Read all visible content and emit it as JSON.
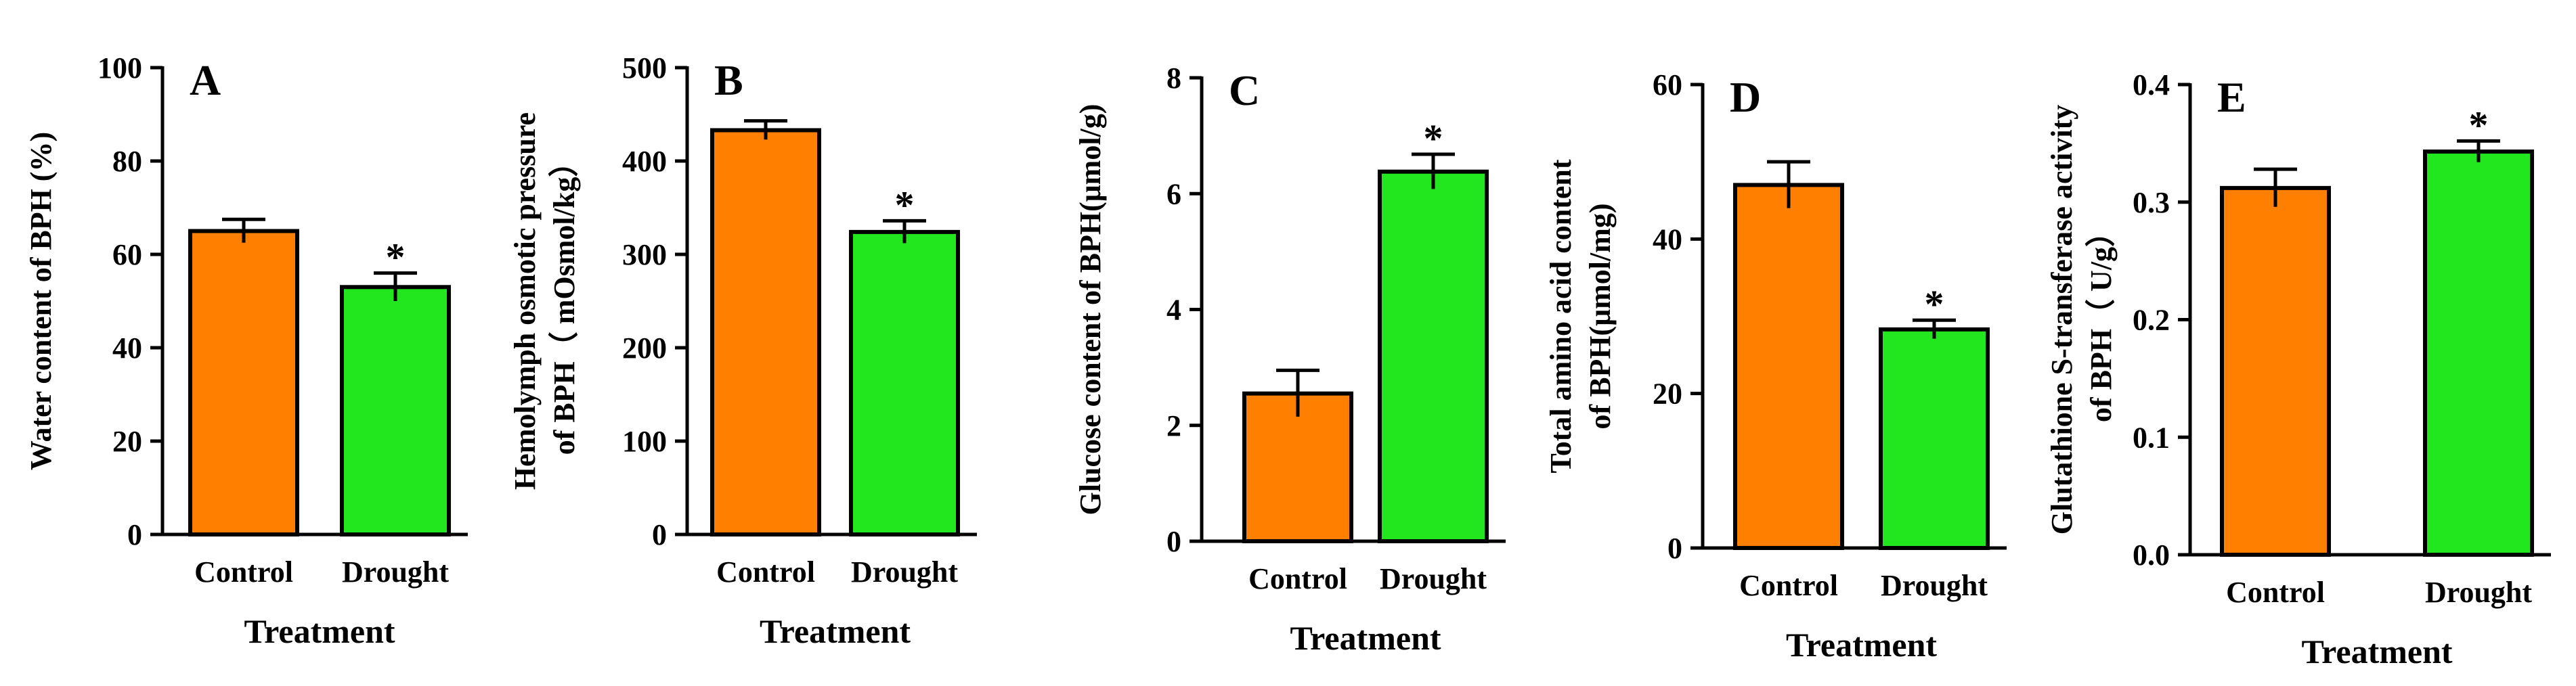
{
  "colors": {
    "control": "#FF7F00",
    "drought": "#22E61E",
    "axis": "#000000"
  },
  "chart_data": [
    {
      "id": "A",
      "type": "bar",
      "panel_label": "A",
      "categories": [
        "Control",
        "Drought"
      ],
      "values": [
        65,
        53
      ],
      "errors": [
        2.5,
        3
      ],
      "significance": [
        "",
        "*"
      ],
      "ylabel_lines": [
        "Water content of BPH (%)"
      ],
      "xlabel": "Treatment",
      "ylim": [
        0,
        100
      ],
      "yticks": [
        0,
        20,
        40,
        60,
        80,
        100
      ],
      "ytick_labels": [
        "0",
        "20",
        "40",
        "60",
        "80",
        "100"
      ]
    },
    {
      "id": "B",
      "type": "bar",
      "panel_label": "B",
      "categories": [
        "Control",
        "Drought"
      ],
      "values": [
        433,
        324
      ],
      "errors": [
        10,
        12
      ],
      "significance": [
        "",
        "*"
      ],
      "ylabel_lines": [
        "Hemolymph osmotic pressure",
        "of BPH（ mOsmol/kg）"
      ],
      "xlabel": "Treatment",
      "ylim": [
        0,
        500
      ],
      "yticks": [
        0,
        100,
        200,
        300,
        400,
        500
      ],
      "ytick_labels": [
        "0",
        "100",
        "200",
        "300",
        "400",
        "500"
      ]
    },
    {
      "id": "C",
      "type": "bar",
      "panel_label": "C",
      "categories": [
        "Control",
        "Drought"
      ],
      "values": [
        2.55,
        6.38
      ],
      "errors": [
        0.4,
        0.3
      ],
      "significance": [
        "",
        "*"
      ],
      "ylabel_lines": [
        "Glucose content of BPH(μmol/g)"
      ],
      "xlabel": "Treatment",
      "ylim": [
        0,
        8
      ],
      "yticks": [
        0,
        2,
        4,
        6,
        8
      ],
      "ytick_labels": [
        "0",
        "2",
        "4",
        "6",
        "8"
      ]
    },
    {
      "id": "D",
      "type": "bar",
      "panel_label": "D",
      "categories": [
        "Control",
        "Drought"
      ],
      "values": [
        47,
        28.3
      ],
      "errors": [
        3,
        1.2
      ],
      "significance": [
        "",
        "*"
      ],
      "ylabel_lines": [
        "Total amino acid content",
        "of BPH(μmol/mg)"
      ],
      "xlabel": "Treatment",
      "ylim": [
        0,
        60
      ],
      "yticks": [
        0,
        20,
        40,
        60
      ],
      "ytick_labels": [
        "0",
        "20",
        "40",
        "60"
      ]
    },
    {
      "id": "E",
      "type": "bar",
      "panel_label": "E",
      "categories": [
        "Control",
        "Drought"
      ],
      "values": [
        0.312,
        0.343
      ],
      "errors": [
        0.016,
        0.009
      ],
      "significance": [
        "",
        "*"
      ],
      "ylabel_lines": [
        "Glutathione S-transferase activity",
        "of BPH（ U/g）"
      ],
      "xlabel": "Treatment",
      "ylim": [
        0,
        0.4
      ],
      "yticks": [
        0,
        0.1,
        0.2,
        0.3,
        0.4
      ],
      "ytick_labels": [
        "0.0",
        "0.1",
        "0.2",
        "0.3",
        "0.4"
      ]
    }
  ]
}
